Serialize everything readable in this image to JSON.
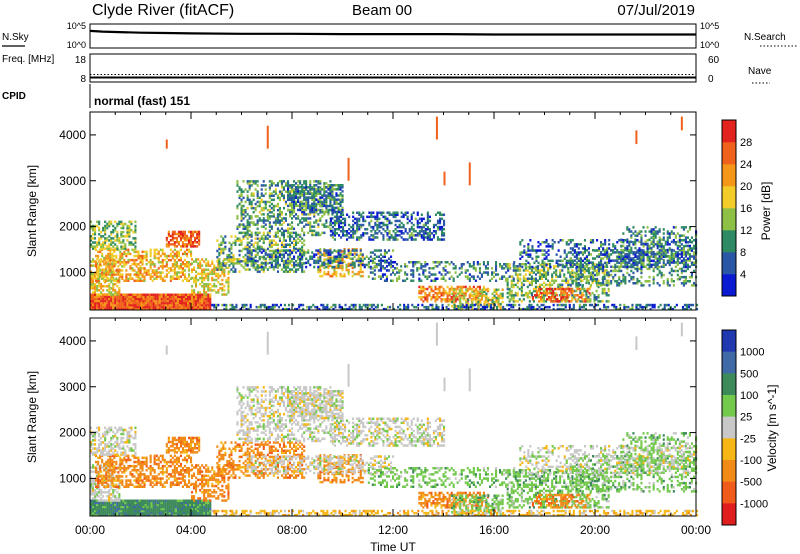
{
  "header": {
    "station": "Clyde River (fitACF)",
    "beam": "Beam 00",
    "date": "07/Jul/2019"
  },
  "chart_data": [
    {
      "type": "line",
      "panel": "noise",
      "left_label": "N.Sky",
      "right_label": "N.Search",
      "left_ticks": [
        "10^5",
        "10^0"
      ],
      "right_ticks": [
        "10^5",
        "10^0"
      ],
      "series": [
        {
          "style": "solid",
          "x": [
            0,
            0.5,
            1,
            2,
            3,
            4,
            6,
            8,
            10,
            12,
            14,
            16,
            18,
            20,
            22,
            24
          ],
          "values": [
            4.2,
            4.0,
            3.9,
            3.7,
            3.6,
            3.5,
            3.4,
            3.4,
            3.3,
            3.3,
            3.3,
            3.2,
            3.2,
            3.2,
            3.2,
            3.2
          ]
        }
      ]
    },
    {
      "type": "line",
      "panel": "frequency",
      "left_label": "Freq. [MHz]",
      "right_label": "Nave",
      "left_ticks": [
        "18",
        "8"
      ],
      "right_ticks": [
        "60",
        "0"
      ],
      "series": [
        {
          "style": "solid",
          "name": "Freq.",
          "x": [
            0,
            24
          ],
          "values": [
            9.6,
            9.6
          ]
        },
        {
          "style": "dotted",
          "name": "Nave",
          "x": [
            0,
            24
          ],
          "values": [
            16,
            16
          ]
        }
      ]
    },
    {
      "type": "table",
      "panel": "cpid",
      "label": "CPID",
      "value": "normal (fast) 151"
    },
    {
      "type": "heatmap",
      "panel": "power",
      "ylabel": "Slant Range [km]",
      "xlabel": "",
      "x_ticks": [
        "00:00",
        "04:00",
        "08:00",
        "12:00",
        "16:00",
        "20:00",
        "00:00"
      ],
      "y_ticks": [
        1000,
        2000,
        3000,
        4000
      ],
      "ylim": [
        180,
        4500
      ],
      "colorbar": {
        "label": "Power [dB]",
        "ticks": [
          4,
          8,
          12,
          16,
          20,
          24,
          28
        ],
        "colors": [
          "#0a1ad2",
          "#2a56a6",
          "#2e8a62",
          "#8ec046",
          "#f2cd2a",
          "#f49618",
          "#f0611c",
          "#e2231e"
        ]
      },
      "scale": [
        0,
        32
      ]
    },
    {
      "type": "heatmap",
      "panel": "velocity",
      "ylabel": "Slant Range [km]",
      "xlabel": "Time UT",
      "x_ticks": [
        "00:00",
        "04:00",
        "08:00",
        "12:00",
        "16:00",
        "20:00",
        "00:00"
      ],
      "y_ticks": [
        1000,
        2000,
        3000,
        4000
      ],
      "ylim": [
        180,
        4500
      ],
      "colorbar": {
        "label": "Velocity [m s^-1]",
        "ticks": [
          "1000",
          "500",
          "100",
          "25",
          "-25",
          "-100",
          "-500",
          "-1000"
        ],
        "colors": [
          "#2038b0",
          "#3f6aa6",
          "#3d8a5a",
          "#73c94c",
          "#c8c8c8",
          "#f6b616",
          "#f28a18",
          "#f05a1a",
          "#e01e1e"
        ]
      }
    }
  ]
}
